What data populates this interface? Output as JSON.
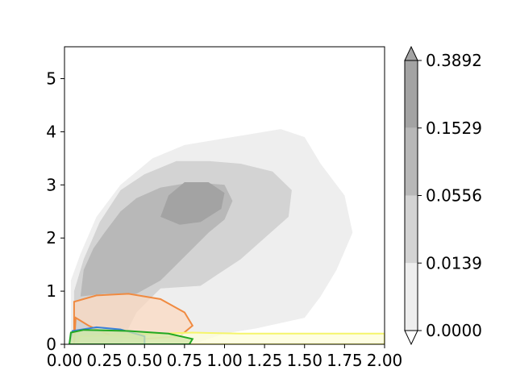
{
  "chart_data": {
    "type": "heatmap",
    "title": "",
    "xlabel": "",
    "ylabel": "",
    "xlim": [
      0.0,
      2.0
    ],
    "ylim": [
      0.0,
      5.6
    ],
    "x_ticks": [
      0.0,
      0.25,
      0.5,
      0.75,
      1.0,
      1.25,
      1.5,
      1.75,
      2.0
    ],
    "x_tick_labels": [
      "0.00",
      "0.25",
      "0.50",
      "0.75",
      "1.00",
      "1.25",
      "1.50",
      "1.75",
      "2.00"
    ],
    "y_ticks": [
      0,
      1,
      2,
      3,
      4,
      5
    ],
    "y_tick_labels": [
      "0",
      "1",
      "2",
      "3",
      "4",
      "5"
    ],
    "grid": false,
    "colorbar": {
      "levels": [
        0.0,
        0.0139,
        0.0556,
        0.1529,
        0.3892
      ],
      "tick_labels": [
        "0.0000",
        "0.0139",
        "0.0556",
        "0.1529",
        "0.3892"
      ],
      "colors": [
        "#ffffff",
        "#eeeeee",
        "#d3d3d3",
        "#b8b8b8",
        "#a3a3a3"
      ],
      "extend": "both"
    },
    "filled_regions": [
      {
        "level": 1,
        "color": "#eeeeee",
        "points": [
          [
            0.04,
            0.0
          ],
          [
            0.04,
            1.2
          ],
          [
            0.1,
            1.7
          ],
          [
            0.2,
            2.4
          ],
          [
            0.35,
            3.0
          ],
          [
            0.55,
            3.5
          ],
          [
            0.75,
            3.75
          ],
          [
            0.95,
            3.85
          ],
          [
            1.15,
            3.95
          ],
          [
            1.35,
            4.05
          ],
          [
            1.5,
            3.9
          ],
          [
            1.6,
            3.4
          ],
          [
            1.75,
            2.8
          ],
          [
            1.8,
            2.1
          ],
          [
            1.7,
            1.4
          ],
          [
            1.6,
            0.9
          ],
          [
            1.5,
            0.5
          ],
          [
            1.2,
            0.3
          ],
          [
            1.0,
            0.2
          ],
          [
            0.8,
            0.0
          ]
        ]
      },
      {
        "level": 2,
        "color": "#d3d3d3",
        "points": [
          [
            0.06,
            0.0
          ],
          [
            0.06,
            1.0
          ],
          [
            0.12,
            1.6
          ],
          [
            0.22,
            2.3
          ],
          [
            0.35,
            2.9
          ],
          [
            0.5,
            3.2
          ],
          [
            0.7,
            3.45
          ],
          [
            0.9,
            3.45
          ],
          [
            1.1,
            3.4
          ],
          [
            1.3,
            3.25
          ],
          [
            1.42,
            2.9
          ],
          [
            1.4,
            2.4
          ],
          [
            1.25,
            2.0
          ],
          [
            1.1,
            1.6
          ],
          [
            0.95,
            1.3
          ],
          [
            0.85,
            1.1
          ],
          [
            0.6,
            1.05
          ],
          [
            0.45,
            0.6
          ],
          [
            0.35,
            0.0
          ]
        ]
      },
      {
        "level": 3,
        "color": "#b8b8b8",
        "points": [
          [
            0.1,
            0.9
          ],
          [
            0.12,
            1.4
          ],
          [
            0.18,
            1.8
          ],
          [
            0.25,
            2.1
          ],
          [
            0.35,
            2.5
          ],
          [
            0.45,
            2.75
          ],
          [
            0.6,
            2.95
          ],
          [
            0.8,
            3.05
          ],
          [
            1.0,
            3.0
          ],
          [
            1.05,
            2.7
          ],
          [
            1.0,
            2.35
          ],
          [
            0.9,
            2.1
          ],
          [
            0.8,
            1.8
          ],
          [
            0.7,
            1.5
          ],
          [
            0.6,
            1.2
          ],
          [
            0.45,
            0.95
          ],
          [
            0.25,
            0.95
          ]
        ]
      },
      {
        "level": 4,
        "color": "#a3a3a3",
        "points": [
          [
            0.6,
            2.4
          ],
          [
            0.65,
            2.8
          ],
          [
            0.75,
            3.05
          ],
          [
            0.9,
            3.05
          ],
          [
            1.0,
            2.85
          ],
          [
            0.98,
            2.55
          ],
          [
            0.85,
            2.3
          ],
          [
            0.72,
            2.25
          ]
        ]
      }
    ],
    "contour_lines": [
      {
        "color": "#f08a40",
        "fill": "#fbd9c2",
        "points": [
          [
            0.06,
            0.0
          ],
          [
            0.06,
            0.8
          ],
          [
            0.2,
            0.92
          ],
          [
            0.4,
            0.95
          ],
          [
            0.6,
            0.85
          ],
          [
            0.75,
            0.6
          ],
          [
            0.8,
            0.35
          ],
          [
            0.72,
            0.15
          ],
          [
            0.5,
            0.1
          ],
          [
            0.3,
            0.15
          ],
          [
            0.15,
            0.35
          ],
          [
            0.07,
            0.5
          ],
          [
            0.06,
            0.0
          ]
        ]
      },
      {
        "color": "#f5f56a",
        "fill": "#fdfdd8",
        "points": [
          [
            0.08,
            0.0
          ],
          [
            0.1,
            0.15
          ],
          [
            0.4,
            0.18
          ],
          [
            0.8,
            0.22
          ],
          [
            1.1,
            0.2
          ],
          [
            1.5,
            0.2
          ],
          [
            2.0,
            0.2
          ],
          [
            2.0,
            0.0
          ]
        ]
      },
      {
        "color": "#3a7fd9",
        "fill": "#c9e3c0",
        "points": [
          [
            0.03,
            0.0
          ],
          [
            0.05,
            0.25
          ],
          [
            0.2,
            0.32
          ],
          [
            0.35,
            0.28
          ],
          [
            0.5,
            0.15
          ],
          [
            0.5,
            0.0
          ]
        ]
      },
      {
        "color": "#22a822",
        "fill": "#d2e6a8",
        "points": [
          [
            0.03,
            0.0
          ],
          [
            0.04,
            0.22
          ],
          [
            0.12,
            0.27
          ],
          [
            0.4,
            0.25
          ],
          [
            0.65,
            0.2
          ],
          [
            0.8,
            0.1
          ],
          [
            0.78,
            0.0
          ]
        ]
      }
    ]
  }
}
